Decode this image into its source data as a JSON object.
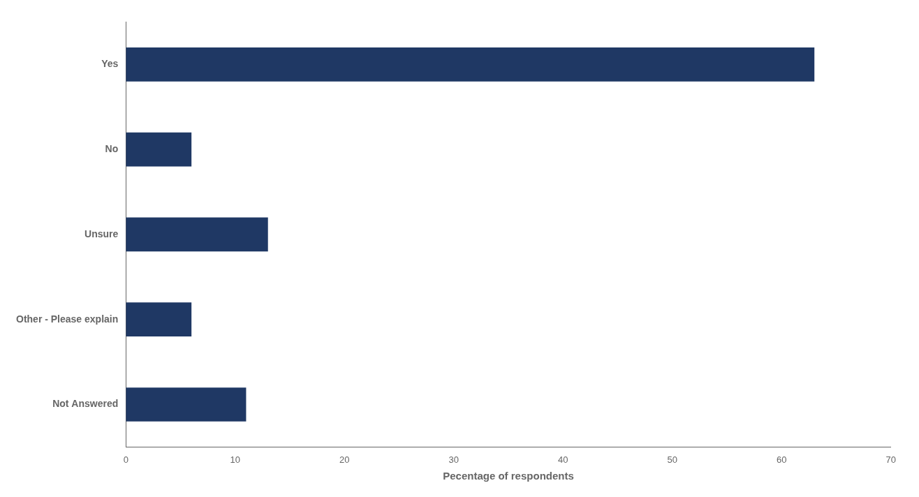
{
  "chart_data": {
    "type": "bar",
    "orientation": "horizontal",
    "categories": [
      "Yes",
      "No",
      "Unsure",
      "Other - Please explain",
      "Not Answered"
    ],
    "values": [
      63,
      6,
      13,
      6,
      11
    ],
    "color": "#1F3864",
    "xlabel": "Pecentage of respondents",
    "xlim": [
      0,
      70
    ],
    "xticks": [
      0,
      10,
      20,
      30,
      40,
      50,
      60,
      70
    ],
    "grid": false
  }
}
